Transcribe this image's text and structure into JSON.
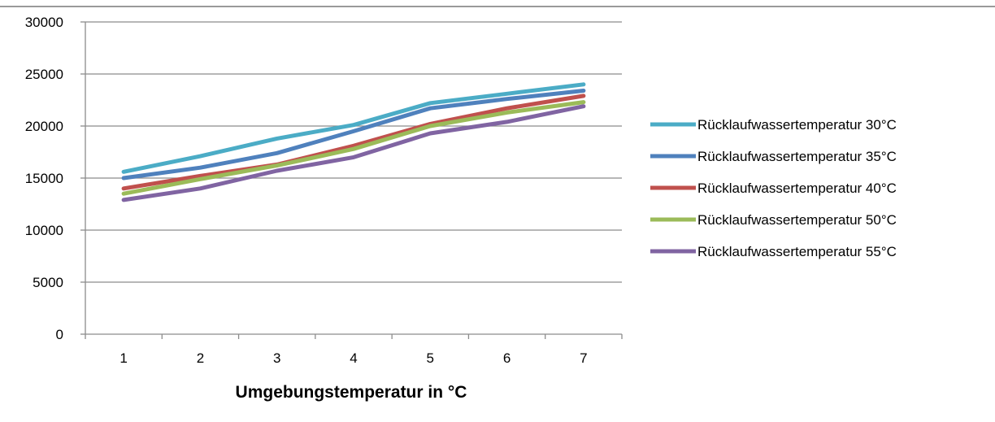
{
  "chart_data": {
    "type": "line",
    "title": "",
    "xlabel": "Umgebungstemperatur in °C",
    "ylabel": "",
    "categories": [
      "1",
      "2",
      "3",
      "4",
      "5",
      "6",
      "7"
    ],
    "ylim": [
      0,
      30000
    ],
    "yticks": [
      0,
      5000,
      10000,
      15000,
      20000,
      25000,
      30000
    ],
    "grid": "horizontal",
    "legend_position": "right",
    "series": [
      {
        "name": "Rücklaufwassertemperatur 30°C",
        "color": "#4BACC6",
        "values": [
          15600,
          17100,
          18800,
          20100,
          22200,
          23100,
          24000
        ]
      },
      {
        "name": "Rücklaufwassertemperatur 35°C",
        "color": "#4F81BD",
        "values": [
          15000,
          16000,
          17400,
          19500,
          21700,
          22600,
          23400
        ]
      },
      {
        "name": "Rücklaufwassertemperatur 40°C",
        "color": "#C0504D",
        "values": [
          14000,
          15200,
          16300,
          18100,
          20200,
          21700,
          22900
        ]
      },
      {
        "name": "Rücklaufwassertemperatur 50°C",
        "color": "#9BBB59",
        "values": [
          13500,
          14900,
          16200,
          17800,
          20000,
          21300,
          22300
        ]
      },
      {
        "name": "Rücklaufwassertemperatur 55°C",
        "color": "#8064A2",
        "values": [
          12900,
          14000,
          15700,
          17000,
          19300,
          20400,
          21900
        ]
      }
    ]
  }
}
